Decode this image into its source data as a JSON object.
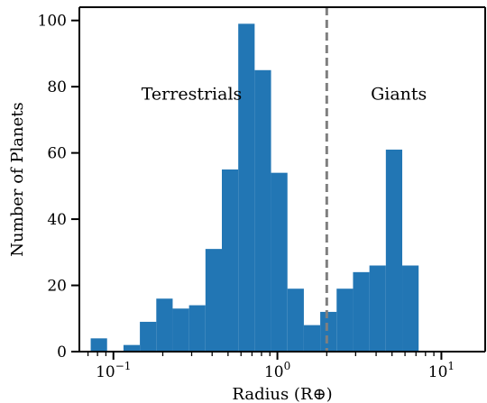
{
  "chart_data": {
    "type": "bar",
    "xscale": "log",
    "xlabel": "Radius (R⊕)",
    "ylabel": "Number of Planets",
    "xlim": [
      0.062,
      18.5
    ],
    "ylim": [
      0,
      104
    ],
    "color": "#2276b4",
    "divider": {
      "x": 2.0,
      "color": "#7f7f7f",
      "style": "dashed"
    },
    "annotations": [
      {
        "text": "Terrestrials",
        "x": 0.3,
        "y": 78
      },
      {
        "text": "Giants",
        "x": 5.5,
        "y": 78
      }
    ],
    "bin_edges": [
      0.0727,
      0.0915,
      0.1152,
      0.145,
      0.1826,
      0.2298,
      0.2893,
      0.3642,
      0.4585,
      0.5772,
      0.7266,
      0.9148,
      1.1517,
      1.45,
      1.825,
      2.297,
      2.892,
      3.641,
      4.585,
      5.772,
      7.266,
      9.148,
      11.517,
      14.5
    ],
    "values": [
      4,
      0,
      2,
      9,
      16,
      13,
      14,
      31,
      55,
      99,
      85,
      54,
      19,
      8,
      12,
      19,
      24,
      26,
      61,
      26,
      0,
      0,
      0
    ],
    "x_ticks": [
      {
        "value": 0.1,
        "base": "10",
        "exp": "−1"
      },
      {
        "value": 1,
        "base": "10",
        "exp": "0"
      },
      {
        "value": 10,
        "base": "10",
        "exp": "1"
      }
    ],
    "y_ticks": [
      0,
      20,
      40,
      60,
      80,
      100
    ]
  }
}
